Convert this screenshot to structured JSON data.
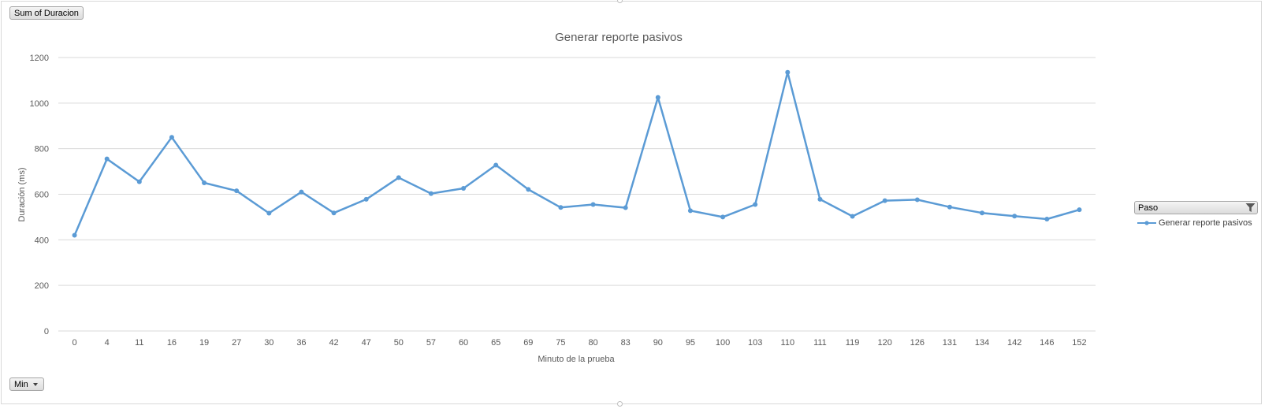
{
  "field_buttons": {
    "values_label": "Sum of Duracion",
    "axis_field_label": "Min"
  },
  "legend": {
    "header": "Paso",
    "entries": [
      "Generar reporte pasivos"
    ]
  },
  "colors": {
    "series": "#5b9bd5",
    "grid": "#d9d9d9",
    "text": "#595959"
  },
  "chart_data": {
    "type": "line",
    "title": "Generar reporte pasivos",
    "xlabel": "Minuto de la prueba",
    "ylabel": "Duración (ms)",
    "ylim": [
      0,
      1200
    ],
    "yticks": [
      0,
      200,
      400,
      600,
      800,
      1000,
      1200
    ],
    "grid": true,
    "legend_position": "right",
    "categories": [
      "0",
      "4",
      "11",
      "16",
      "19",
      "27",
      "30",
      "36",
      "42",
      "47",
      "50",
      "57",
      "60",
      "65",
      "69",
      "75",
      "80",
      "83",
      "90",
      "95",
      "100",
      "103",
      "110",
      "111",
      "119",
      "120",
      "126",
      "131",
      "134",
      "142",
      "146",
      "152"
    ],
    "series": [
      {
        "name": "Generar reporte pasivos",
        "values": [
          420,
          755,
          655,
          850,
          650,
          615,
          517,
          610,
          518,
          578,
          673,
          603,
          626,
          728,
          621,
          542,
          555,
          541,
          1025,
          528,
          500,
          555,
          1135,
          578,
          503,
          572,
          576,
          544,
          518,
          504,
          491,
          532
        ]
      }
    ]
  }
}
